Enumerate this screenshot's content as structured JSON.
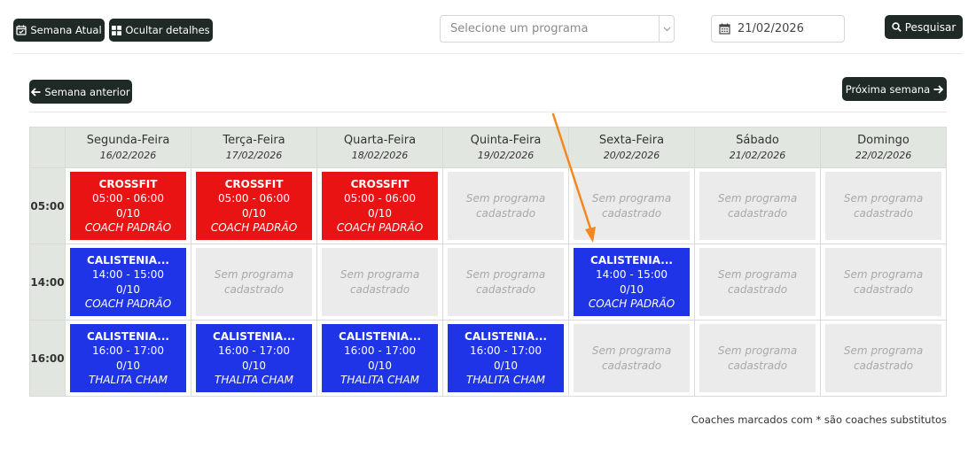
{
  "toolbar": {
    "current_week_label": "Semana Atual",
    "hide_details_label": "Ocultar detalhes",
    "program_select_placeholder": "Selecione um programa",
    "date_value": "21/02/2026",
    "search_label": "Pesquisar"
  },
  "nav": {
    "prev_week_label": "Semana anterior",
    "next_week_label": "Próxima semana"
  },
  "days": [
    {
      "name": "Segunda-Feira",
      "date": "16/02/2026"
    },
    {
      "name": "Terça-Feira",
      "date": "17/02/2026"
    },
    {
      "name": "Quarta-Feira",
      "date": "18/02/2026"
    },
    {
      "name": "Quinta-Feira",
      "date": "19/02/2026"
    },
    {
      "name": "Sexta-Feira",
      "date": "20/02/2026"
    },
    {
      "name": "Sábado",
      "date": "21/02/2026"
    },
    {
      "name": "Domingo",
      "date": "22/02/2026"
    }
  ],
  "empty_text": "Sem programa cadastrado",
  "rows": [
    {
      "time": "05:00",
      "cells": [
        {
          "type": "class",
          "color": "red",
          "title": "CROSSFIT",
          "hours": "05:00 - 06:00",
          "capacity": "0/10",
          "coach": "COACH PADRÃO"
        },
        {
          "type": "class",
          "color": "red",
          "title": "CROSSFIT",
          "hours": "05:00 - 06:00",
          "capacity": "0/10",
          "coach": "COACH PADRÃO"
        },
        {
          "type": "class",
          "color": "red",
          "title": "CROSSFIT",
          "hours": "05:00 - 06:00",
          "capacity": "0/10",
          "coach": "COACH PADRÃO"
        },
        {
          "type": "empty"
        },
        {
          "type": "empty"
        },
        {
          "type": "empty"
        },
        {
          "type": "empty"
        }
      ]
    },
    {
      "time": "14:00",
      "cells": [
        {
          "type": "class",
          "color": "blue",
          "title": "CALISTENIA...",
          "hours": "14:00 - 15:00",
          "capacity": "0/10",
          "coach": "COACH PADRÃO"
        },
        {
          "type": "empty"
        },
        {
          "type": "empty"
        },
        {
          "type": "empty"
        },
        {
          "type": "class",
          "color": "blue",
          "title": "CALISTENIA...",
          "hours": "14:00 - 15:00",
          "capacity": "0/10",
          "coach": "COACH PADRÃO"
        },
        {
          "type": "empty"
        },
        {
          "type": "empty"
        }
      ]
    },
    {
      "time": "16:00",
      "cells": [
        {
          "type": "class",
          "color": "blue",
          "title": "CALISTENIA...",
          "hours": "16:00 - 17:00",
          "capacity": "0/10",
          "coach": "THALITA CHAM"
        },
        {
          "type": "class",
          "color": "blue",
          "title": "CALISTENIA...",
          "hours": "16:00 - 17:00",
          "capacity": "0/10",
          "coach": "THALITA CHAM"
        },
        {
          "type": "class",
          "color": "blue",
          "title": "CALISTENIA...",
          "hours": "16:00 - 17:00",
          "capacity": "0/10",
          "coach": "THALITA CHAM"
        },
        {
          "type": "class",
          "color": "blue",
          "title": "CALISTENIA...",
          "hours": "16:00 - 17:00",
          "capacity": "0/10",
          "coach": "THALITA CHAM"
        },
        {
          "type": "empty"
        },
        {
          "type": "empty"
        },
        {
          "type": "empty"
        }
      ]
    }
  ],
  "footnote": "Coaches marcados com * são coaches substitutos",
  "colors": {
    "class_red": "#ea1313",
    "class_blue": "#1e34e6",
    "button_dark": "#1f2a26",
    "header_bg": "#e2e6e0",
    "empty_bg": "#ebebeb",
    "annotation_arrow": "#f5871f"
  }
}
